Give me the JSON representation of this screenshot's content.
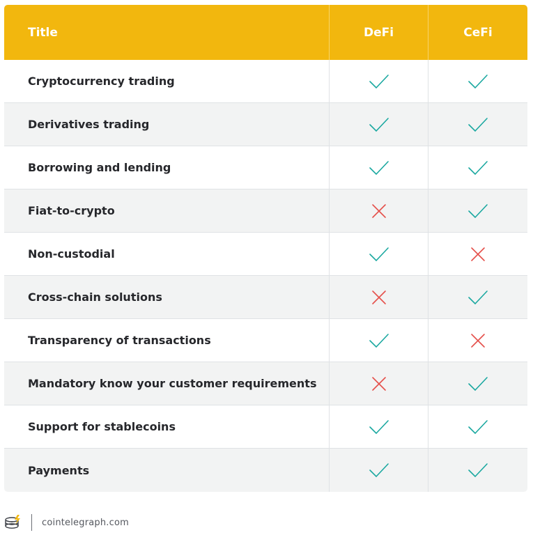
{
  "header": {
    "title": "Title",
    "col1": "DeFi",
    "col2": "CeFi"
  },
  "colors": {
    "header_bg": "#f2b70e",
    "check": "#1aa8a0",
    "cross": "#e5504b",
    "stripe": "#f2f3f3"
  },
  "rows": [
    {
      "label": "Cryptocurrency trading",
      "defi": "check",
      "cefi": "check"
    },
    {
      "label": "Derivatives trading",
      "defi": "check",
      "cefi": "check"
    },
    {
      "label": "Borrowing and lending",
      "defi": "check",
      "cefi": "check"
    },
    {
      "label": "Fiat-to-crypto",
      "defi": "cross",
      "cefi": "check"
    },
    {
      "label": "Non-custodial",
      "defi": "check",
      "cefi": "cross"
    },
    {
      "label": "Cross-chain solutions",
      "defi": "cross",
      "cefi": "check"
    },
    {
      "label": "Transparency of transactions",
      "defi": "check",
      "cefi": "cross"
    },
    {
      "label": "Mandatory know your customer requirements",
      "defi": "cross",
      "cefi": "check"
    },
    {
      "label": "Support for stablecoins",
      "defi": "check",
      "cefi": "check"
    },
    {
      "label": "Payments",
      "defi": "check",
      "cefi": "check"
    }
  ],
  "footer": {
    "logo_icon": "cointelegraph-logo-icon",
    "site": "cointelegraph.com"
  }
}
